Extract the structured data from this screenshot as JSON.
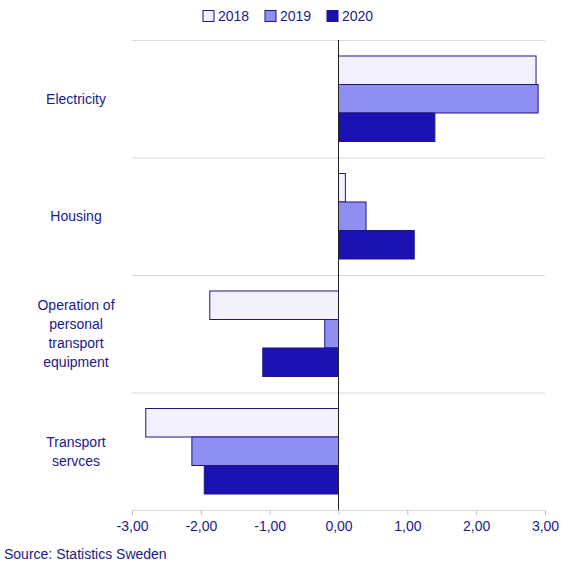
{
  "chart_data": {
    "type": "bar",
    "orientation": "horizontal",
    "legend": "top",
    "source": "Source: Statistics Sweden",
    "categories": [
      "Electricity",
      "Housing",
      "Operation of personal transport equipment",
      "Transport servces"
    ],
    "series": [
      {
        "name": "2018",
        "color": "#f2f0fb",
        "values": [
          2.87,
          0.1,
          -1.87,
          -2.8
        ]
      },
      {
        "name": "2019",
        "color": "#8f8ff2",
        "values": [
          2.9,
          0.4,
          -0.2,
          -2.13
        ]
      },
      {
        "name": "2020",
        "color": "#1b10b0",
        "values": [
          1.4,
          1.1,
          -1.1,
          -1.95
        ]
      }
    ],
    "xlim": [
      -3,
      3
    ],
    "xticks": [
      {
        "value": -3,
        "label": "-3,00"
      },
      {
        "value": -2,
        "label": "-2,00"
      },
      {
        "value": -1,
        "label": "-1,00"
      },
      {
        "value": 0,
        "label": "0,00"
      },
      {
        "value": 1,
        "label": "1,00"
      },
      {
        "value": 2,
        "label": "2,00"
      },
      {
        "value": 3,
        "label": "3,00"
      }
    ]
  }
}
